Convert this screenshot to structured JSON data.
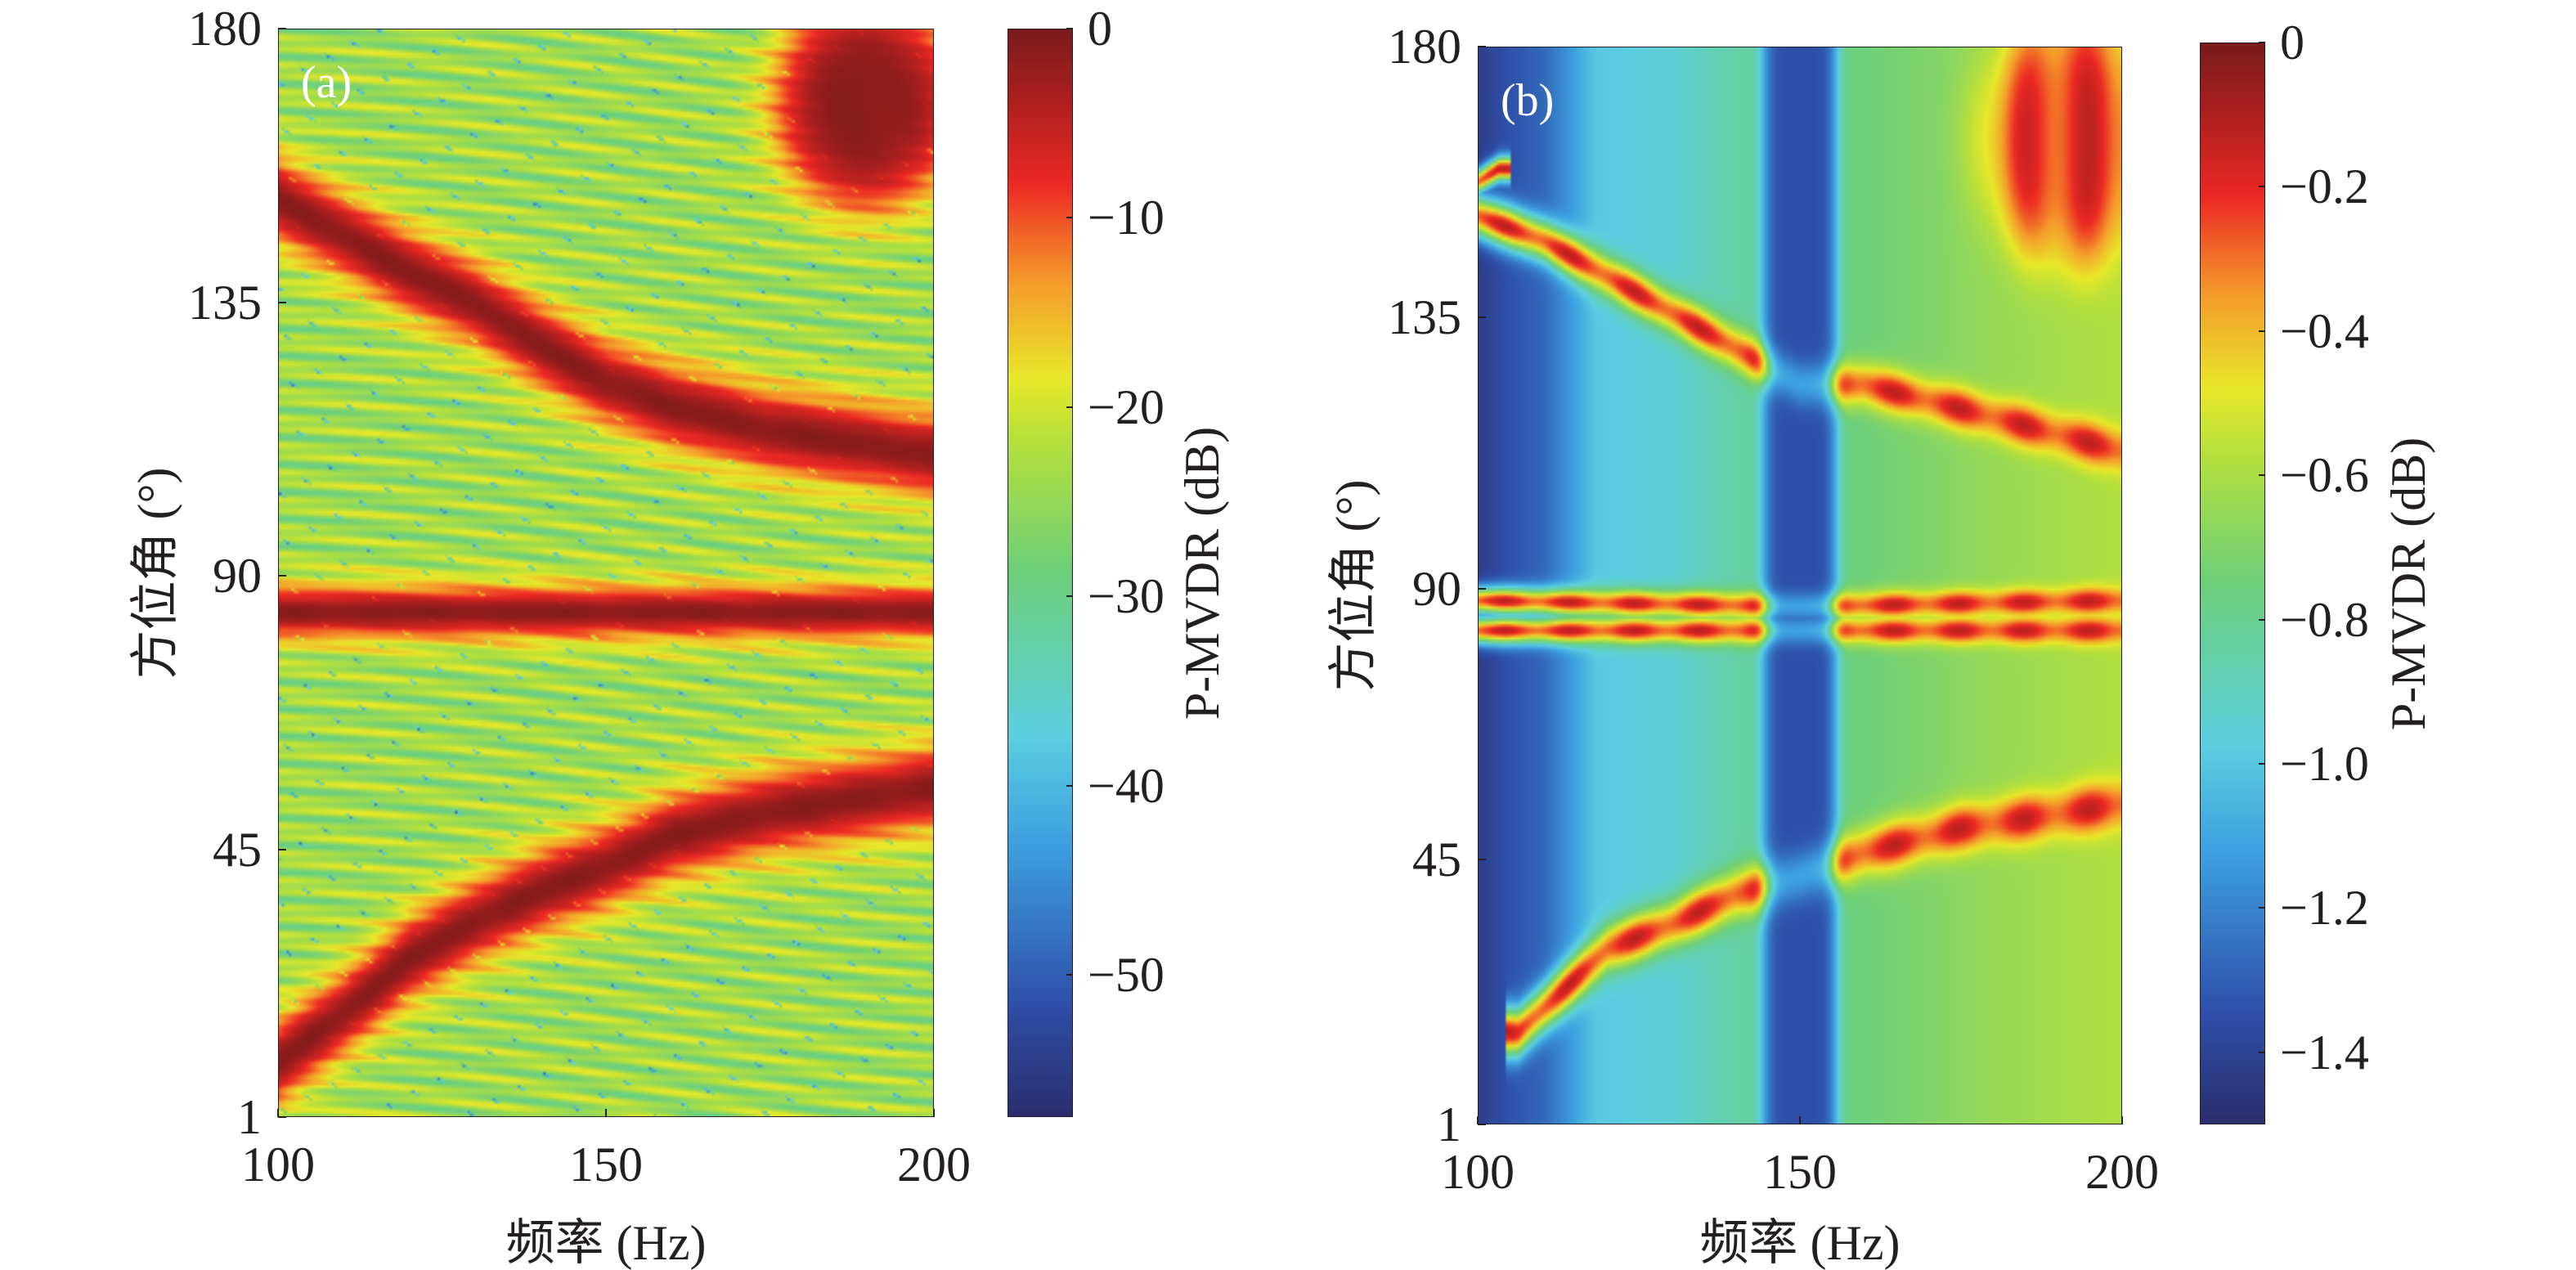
{
  "chart_data": [
    {
      "type": "heatmap",
      "title": "(a)",
      "xlabel": "频率 (Hz)",
      "ylabel": "方位角 (°)",
      "xlim": [
        100,
        200
      ],
      "ylim": [
        1,
        180
      ],
      "xticks": [
        "100",
        "150",
        "200"
      ],
      "xtick_values": [
        100,
        150,
        200
      ],
      "yticks": [
        "1",
        "45",
        "90",
        "135",
        "180"
      ],
      "ytick_values": [
        1,
        45,
        90,
        135,
        180
      ],
      "colorbar": {
        "label": "P-MVDR (dB)",
        "range": [
          -57.5,
          0
        ],
        "ticks": [
          "0",
          "−10",
          "−20",
          "−30",
          "−40",
          "−50"
        ],
        "tick_values": [
          0,
          -10,
          -20,
          -30,
          -40,
          -50
        ]
      },
      "background_level": -24,
      "peak_level": -1,
      "ridges": [
        {
          "points": [
            [
              100,
              152
            ],
            [
              110,
              146
            ],
            [
              120,
              140
            ],
            [
              130,
              135
            ],
            [
              140,
              128
            ],
            [
              150,
              122
            ],
            [
              160,
              118
            ],
            [
              175,
              114
            ],
            [
              200,
              110
            ]
          ],
          "width": 8
        },
        {
          "points": [
            [
              100,
              84
            ],
            [
              150,
              84
            ],
            [
              200,
              84
            ]
          ],
          "width": 5
        },
        {
          "points": [
            [
              100,
              10
            ],
            [
              110,
              18
            ],
            [
              120,
              27
            ],
            [
              130,
              33
            ],
            [
              140,
              38
            ],
            [
              150,
              42
            ],
            [
              160,
              47
            ],
            [
              175,
              51
            ],
            [
              200,
              55
            ]
          ],
          "width": 8
        }
      ],
      "blobs": [
        {
          "center": [
            190,
            168
          ],
          "radius": [
            16,
            20
          ]
        }
      ]
    },
    {
      "type": "heatmap",
      "title": "(b)",
      "xlabel": "频率 (Hz)",
      "ylabel": "方位角 (°)",
      "xlim": [
        100,
        200
      ],
      "ylim": [
        1,
        180
      ],
      "xticks": [
        "100",
        "150",
        "200"
      ],
      "xtick_values": [
        100,
        150,
        200
      ],
      "yticks": [
        "1",
        "45",
        "90",
        "135",
        "180"
      ],
      "ytick_values": [
        1,
        45,
        90,
        135,
        180
      ],
      "colorbar": {
        "label": "P-MVDR (dB)",
        "range": [
          -1.5,
          0
        ],
        "ticks": [
          "0",
          "−0.2",
          "−0.4",
          "−0.6",
          "−0.8",
          "−1.0",
          "−1.2",
          "−1.4"
        ],
        "tick_values": [
          0,
          -0.2,
          -0.4,
          -0.6,
          -0.8,
          -1.0,
          -1.2,
          -1.4
        ]
      },
      "background_profile": [
        [
          100,
          -1.42
        ],
        [
          104,
          -1.35
        ],
        [
          110,
          -1.28
        ],
        [
          114,
          -1.15
        ],
        [
          118,
          -1.0
        ],
        [
          130,
          -0.95
        ],
        [
          140,
          -0.85
        ],
        [
          160,
          -0.75
        ],
        [
          180,
          -0.65
        ],
        [
          200,
          -0.58
        ]
      ],
      "notch": {
        "center_freq": 150,
        "half_width": 6,
        "level": -1.35
      },
      "peak_level": -0.12,
      "ridges": [
        {
          "points": [
            [
              100,
              158
            ],
            [
              103,
              160
            ]
          ],
          "width": 2
        },
        {
          "points": [
            [
              100,
              152
            ],
            [
              110,
              148
            ],
            [
              120,
              142
            ],
            [
              130,
              136
            ],
            [
              140,
              130
            ],
            [
              150,
              124
            ],
            [
              160,
              124
            ],
            [
              175,
              120
            ],
            [
              200,
              113
            ]
          ],
          "width": 3.5
        },
        {
          "points": [
            [
              100,
              88
            ],
            [
              150,
              87
            ],
            [
              200,
              88
            ]
          ],
          "width": 2.2
        },
        {
          "points": [
            [
              100,
              83
            ],
            [
              150,
              83
            ],
            [
              200,
              83
            ]
          ],
          "width": 2.2
        },
        {
          "points": [
            [
              106,
              16
            ],
            [
              112,
              22
            ],
            [
              120,
              30
            ],
            [
              130,
              34
            ],
            [
              140,
              39
            ],
            [
              150,
              42
            ],
            [
              160,
              46
            ],
            [
              175,
              50
            ],
            [
              200,
              54
            ]
          ],
          "width": 4
        }
      ],
      "blobs": [
        {
          "center": [
            192,
            165
          ],
          "radius": [
            14,
            22
          ]
        }
      ]
    }
  ]
}
